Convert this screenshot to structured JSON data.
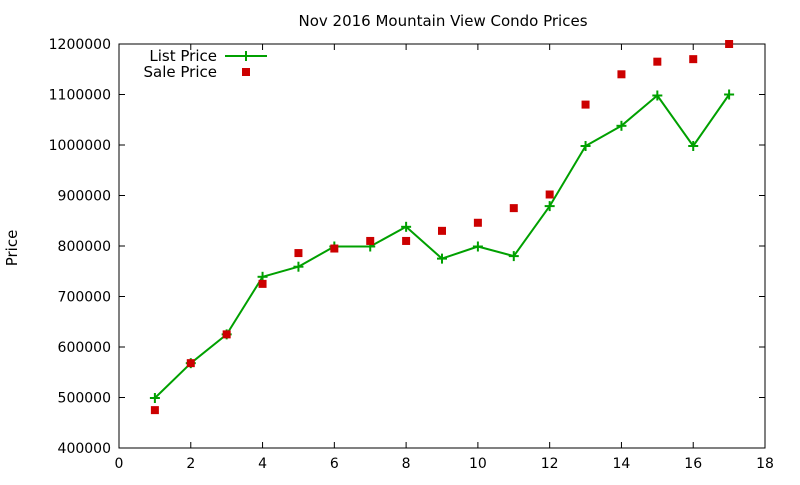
{
  "chart_data": {
    "type": "line",
    "title": "Nov 2016 Mountain View Condo Prices",
    "xlabel": "",
    "ylabel": "Price",
    "xlim": [
      0,
      18
    ],
    "ylim": [
      400000,
      1200000
    ],
    "xticks": [
      "0",
      "2",
      "4",
      "6",
      "8",
      "10",
      "12",
      "14",
      "16",
      "18"
    ],
    "xtick_values": [
      0,
      2,
      4,
      6,
      8,
      10,
      12,
      14,
      16,
      18
    ],
    "yticks": [
      "400000",
      "500000",
      "600000",
      "700000",
      "800000",
      "900000",
      "1000000",
      "1100000",
      "1200000"
    ],
    "ytick_values": [
      400000,
      500000,
      600000,
      700000,
      800000,
      900000,
      1000000,
      1100000,
      1200000
    ],
    "grid": false,
    "legend_position": "top-left",
    "series": [
      {
        "name": "List Price",
        "kind": "line-with-plus-markers",
        "color": "#00a000",
        "x": [
          1,
          2,
          3,
          4,
          5,
          6,
          7,
          8,
          9,
          10,
          11,
          12,
          13,
          14,
          15,
          16,
          17
        ],
        "values": [
          499000,
          568000,
          625000,
          739000,
          759000,
          799000,
          799000,
          838000,
          775000,
          799000,
          780000,
          879000,
          998000,
          1038000,
          1098000,
          998000,
          1100000
        ]
      },
      {
        "name": "Sale Price",
        "kind": "square-points",
        "color": "#cc0000",
        "x": [
          1,
          2,
          3,
          4,
          5,
          6,
          7,
          8,
          9,
          10,
          11,
          12,
          13,
          14,
          15,
          16,
          17
        ],
        "values": [
          475000,
          568000,
          625000,
          725000,
          786000,
          795000,
          810000,
          810000,
          830000,
          846000,
          875000,
          902000,
          1080000,
          1140000,
          1165000,
          1170000,
          1200000
        ]
      }
    ]
  }
}
